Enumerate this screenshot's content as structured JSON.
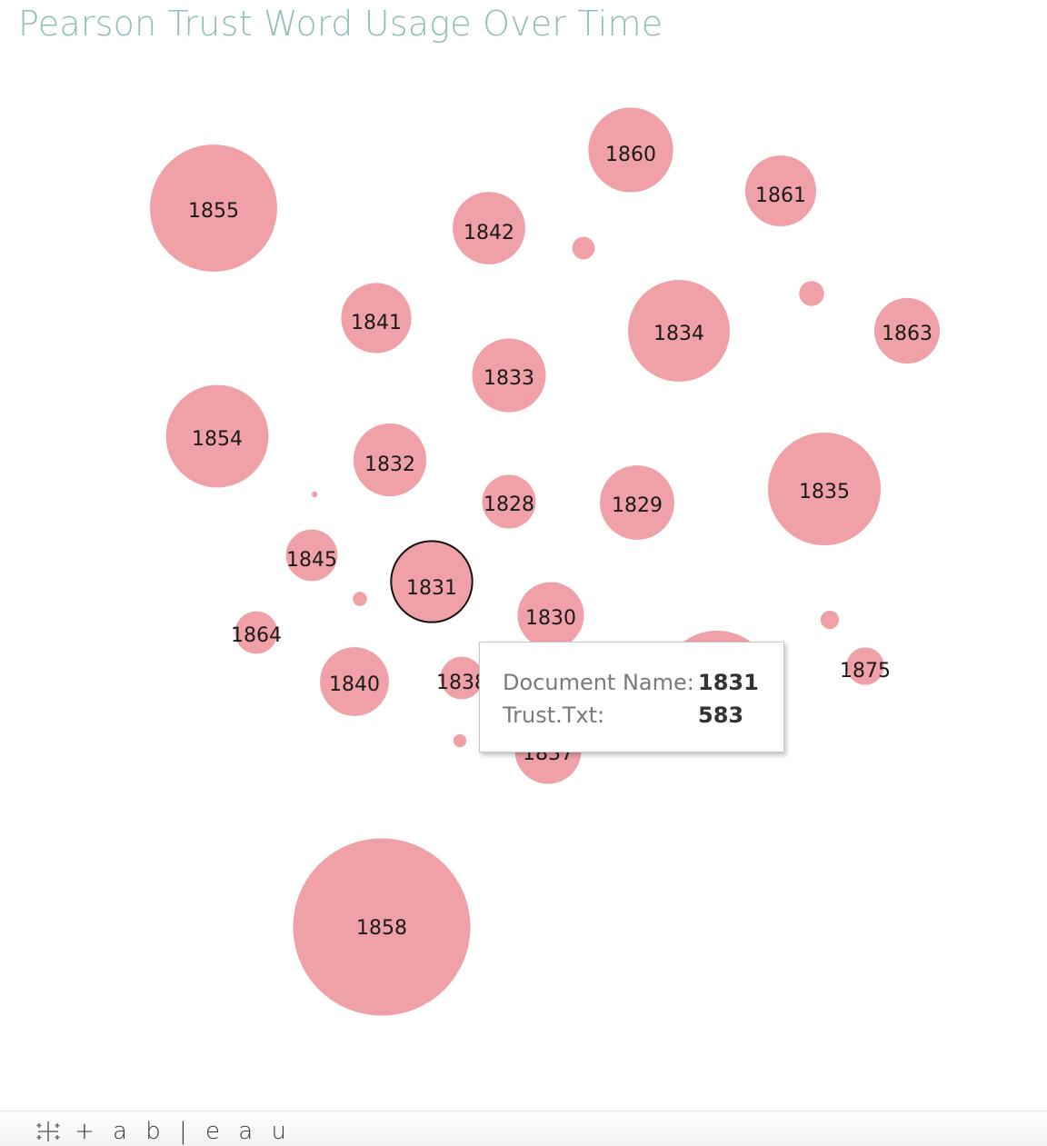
{
  "title": "Pearson Trust Word Usage Over Time",
  "colors": {
    "bubble_fill": "#f0a1a8",
    "highlight_stroke": "#111111",
    "title": "#8fbfb8"
  },
  "tooltip": {
    "name_label": "Document Name:",
    "name_value": "1831",
    "value_label": "Trust.Txt:",
    "value_value": "583"
  },
  "footer": {
    "brand": "+ a b | e a u",
    "icon": "tableau-logo-icon"
  },
  "chart_data": {
    "type": "packed-bubble",
    "size_measure": "Trust.Txt",
    "label_field": "Document Name",
    "highlighted": "1831",
    "bubbles": [
      {
        "label": "1858",
        "value": 2780
      },
      {
        "label": "1855",
        "value": 1430
      },
      {
        "label": "1835",
        "value": 1125
      },
      {
        "label": "1854",
        "value": 930
      },
      {
        "label": "1834",
        "value": 915
      },
      {
        "label": "1860",
        "value": 635
      },
      {
        "label": "1829",
        "value": 490
      },
      {
        "label": "1842",
        "value": 465
      },
      {
        "label": "1833",
        "value": 480
      },
      {
        "label": "1841",
        "value": 435
      },
      {
        "label": "1832",
        "value": 470
      },
      {
        "label": "1861",
        "value": 445
      },
      {
        "label": "1840",
        "value": 420
      },
      {
        "label": "1863",
        "value": 380
      },
      {
        "label": "1830",
        "value": 390
      },
      {
        "label": "1837",
        "value": 390
      },
      {
        "label": "1845",
        "value": 235
      },
      {
        "label": "1831",
        "value": 583
      },
      {
        "label": "1828",
        "value": 255
      },
      {
        "label": "1864",
        "value": 160
      },
      {
        "label": "1875",
        "value": 125
      },
      {
        "label": "1838",
        "value": 160
      },
      {
        "label": "",
        "value": 1125
      },
      {
        "label": "",
        "value": 55
      },
      {
        "label": "",
        "value": 45
      },
      {
        "label": "",
        "value": 30
      },
      {
        "label": "",
        "value": 18
      },
      {
        "label": "",
        "value": 15
      },
      {
        "label": "",
        "value": 3
      }
    ]
  }
}
